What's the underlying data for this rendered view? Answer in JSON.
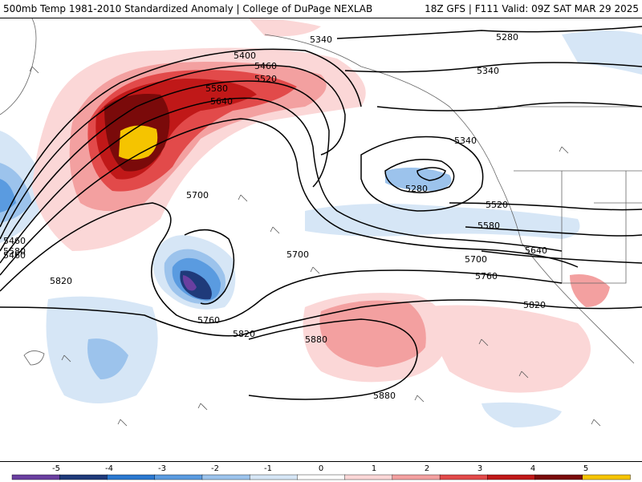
{
  "header": {
    "left": "500mb Temp 1981-2010 Standardized Anomaly | College of DuPage NEXLAB",
    "right": "18Z GFS | F111 Valid: 09Z SAT MAR 29 2025"
  },
  "contour_labels": [
    "5280",
    "5340",
    "5400",
    "5460",
    "5520",
    "5580",
    "5640",
    "5340",
    "5460",
    "5520",
    "5580",
    "5640",
    "5700",
    "5700",
    "5700",
    "5760",
    "5760",
    "5820",
    "5820",
    "5820",
    "5880",
    "5880",
    "5280",
    "5460",
    "5580",
    "5340"
  ],
  "colorbar": {
    "ticks": [
      "-5",
      "-4",
      "-3",
      "-2",
      "-1",
      "0",
      "1",
      "2",
      "3",
      "4",
      "5"
    ],
    "colors": [
      "#6a3fa0",
      "#1f3a7a",
      "#2a78d0",
      "#5a9be0",
      "#9cc3ec",
      "#d6e6f6",
      "#ffffff",
      "#fbd7d7",
      "#f3a0a0",
      "#e24a4a",
      "#c01818",
      "#7a0a0a",
      "#f5c400"
    ]
  }
}
